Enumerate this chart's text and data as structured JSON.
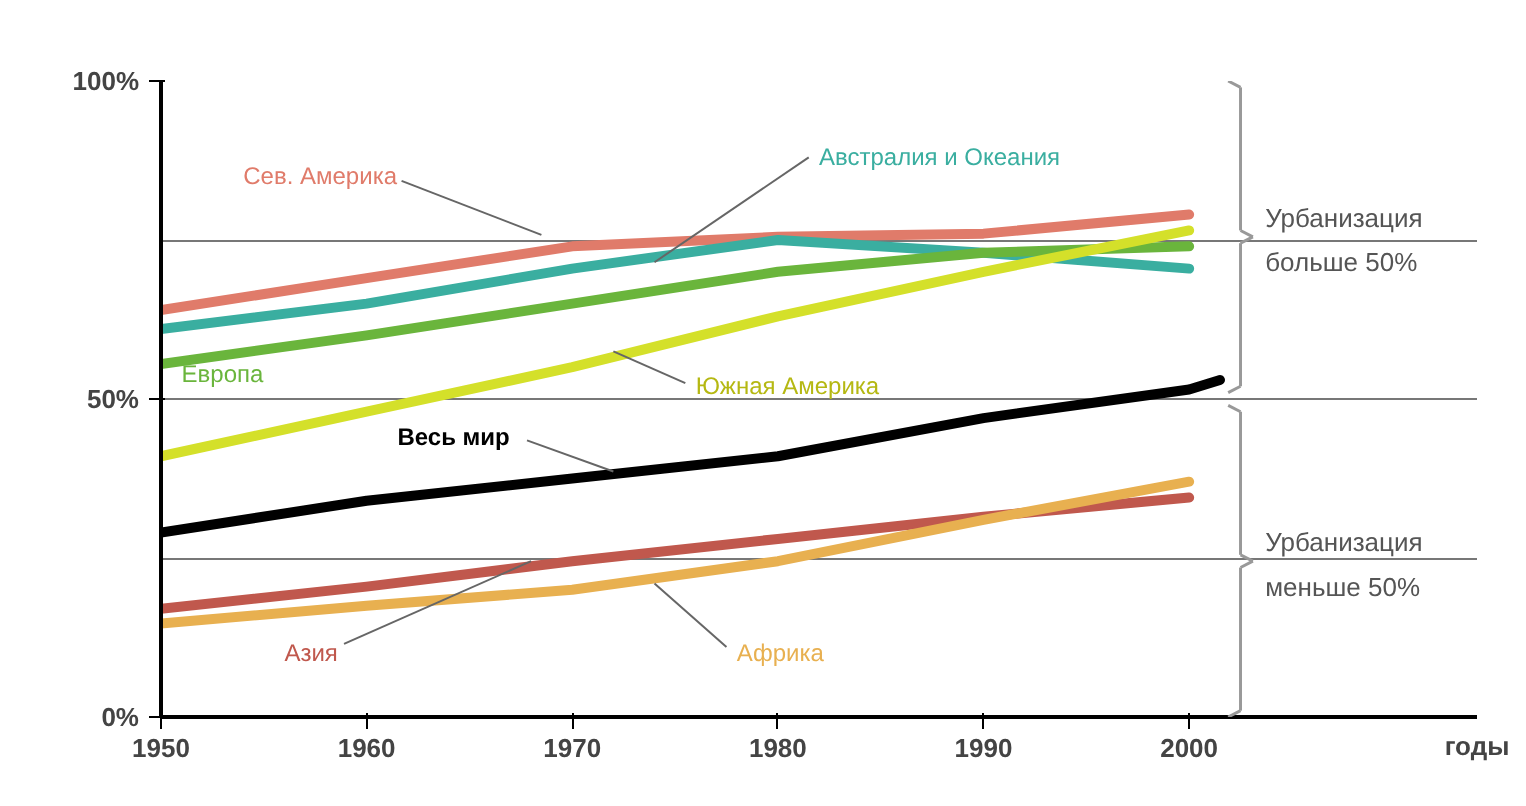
{
  "chart_data": {
    "type": "line",
    "xlabel": "годы",
    "x": [
      1950,
      1960,
      1970,
      1980,
      1990,
      2000
    ],
    "series": [
      {
        "name": "Сев. Америка",
        "color": "#e07b6a",
        "values": [
          64,
          69,
          74,
          75.5,
          76,
          79
        ]
      },
      {
        "name": "Австралия и Океания",
        "color": "#3aaea0",
        "values": [
          61,
          65,
          70.5,
          75,
          73,
          70.5
        ]
      },
      {
        "name": "Европа",
        "color": "#6ab53c",
        "values": [
          55.5,
          60,
          65,
          70,
          73,
          74
        ]
      },
      {
        "name": "Южная Америка",
        "color": "#d4e02a",
        "values": [
          41,
          48,
          55,
          63,
          70,
          76.5
        ]
      },
      {
        "name": "Весь мир",
        "color": "#000000",
        "x": [
          1950,
          1960,
          1970,
          1980,
          1990,
          2000,
          2001.5
        ],
        "values": [
          29,
          34,
          37.5,
          41,
          47,
          51.5,
          53
        ]
      },
      {
        "name": "Азия",
        "color": "#c0584d",
        "values": [
          17,
          20.5,
          24.5,
          28,
          31.5,
          34.5
        ]
      },
      {
        "name": "Африка",
        "color": "#e8b050",
        "values": [
          14.7,
          17.5,
          20,
          24.5,
          31,
          37
        ]
      }
    ],
    "xlim": [
      1950,
      2014
    ],
    "xticks": [
      1950,
      1960,
      1970,
      1980,
      1990,
      2000
    ],
    "ylim": [
      0,
      100
    ],
    "yticks": [
      {
        "value": 0,
        "label": "0%"
      },
      {
        "value": 25,
        "label": null
      },
      {
        "value": 50,
        "label": "50%"
      },
      {
        "value": 75,
        "label": null
      },
      {
        "value": 100,
        "label": "100%"
      }
    ],
    "grid": "y",
    "marker": "none",
    "line_style": "solid",
    "annotations": [
      "Урбанизация больше 50%",
      "Урбанизация меньше 50%"
    ]
  }
}
